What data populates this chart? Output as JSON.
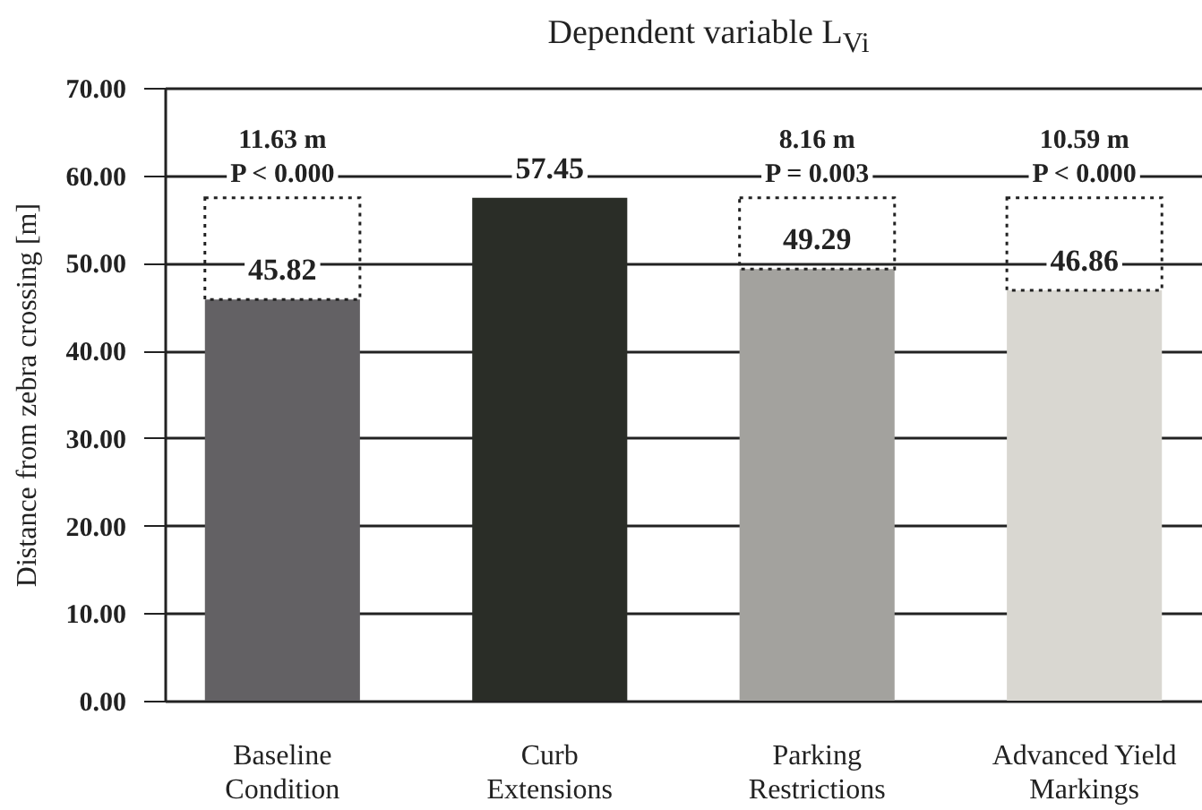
{
  "chart_data": {
    "type": "bar",
    "title": "Dependent variable L$_{Vi}$",
    "ylabel": "Distance from zebra crossing [m]",
    "categories": [
      "Baseline Condition",
      "Curb Extensions",
      "Parking Restrictions",
      "Advanced Yield Markings"
    ],
    "values": [
      45.82,
      57.45,
      49.29,
      46.86
    ],
    "colors": [
      "#636164",
      "#2a2d27",
      "#a3a29e",
      "#d9d7d1"
    ],
    "ylim": [
      0,
      70
    ],
    "yticks": [
      {
        "value": 0,
        "label": "0.00"
      },
      {
        "value": 10,
        "label": "10.00"
      },
      {
        "value": 20,
        "label": "20.00"
      },
      {
        "value": 30,
        "label": "30.00"
      },
      {
        "value": 40,
        "label": "40.00"
      },
      {
        "value": 50,
        "label": "50.00"
      },
      {
        "value": 60,
        "label": "60.00"
      },
      {
        "value": 70,
        "label": "70.00"
      }
    ],
    "grid": "y",
    "data_labels": true,
    "annotations": [
      "11.63 m",
      "P < 0.000",
      "8.16 m",
      "P = 0.003",
      "10.59 m",
      "P < 0.000"
    ]
  }
}
